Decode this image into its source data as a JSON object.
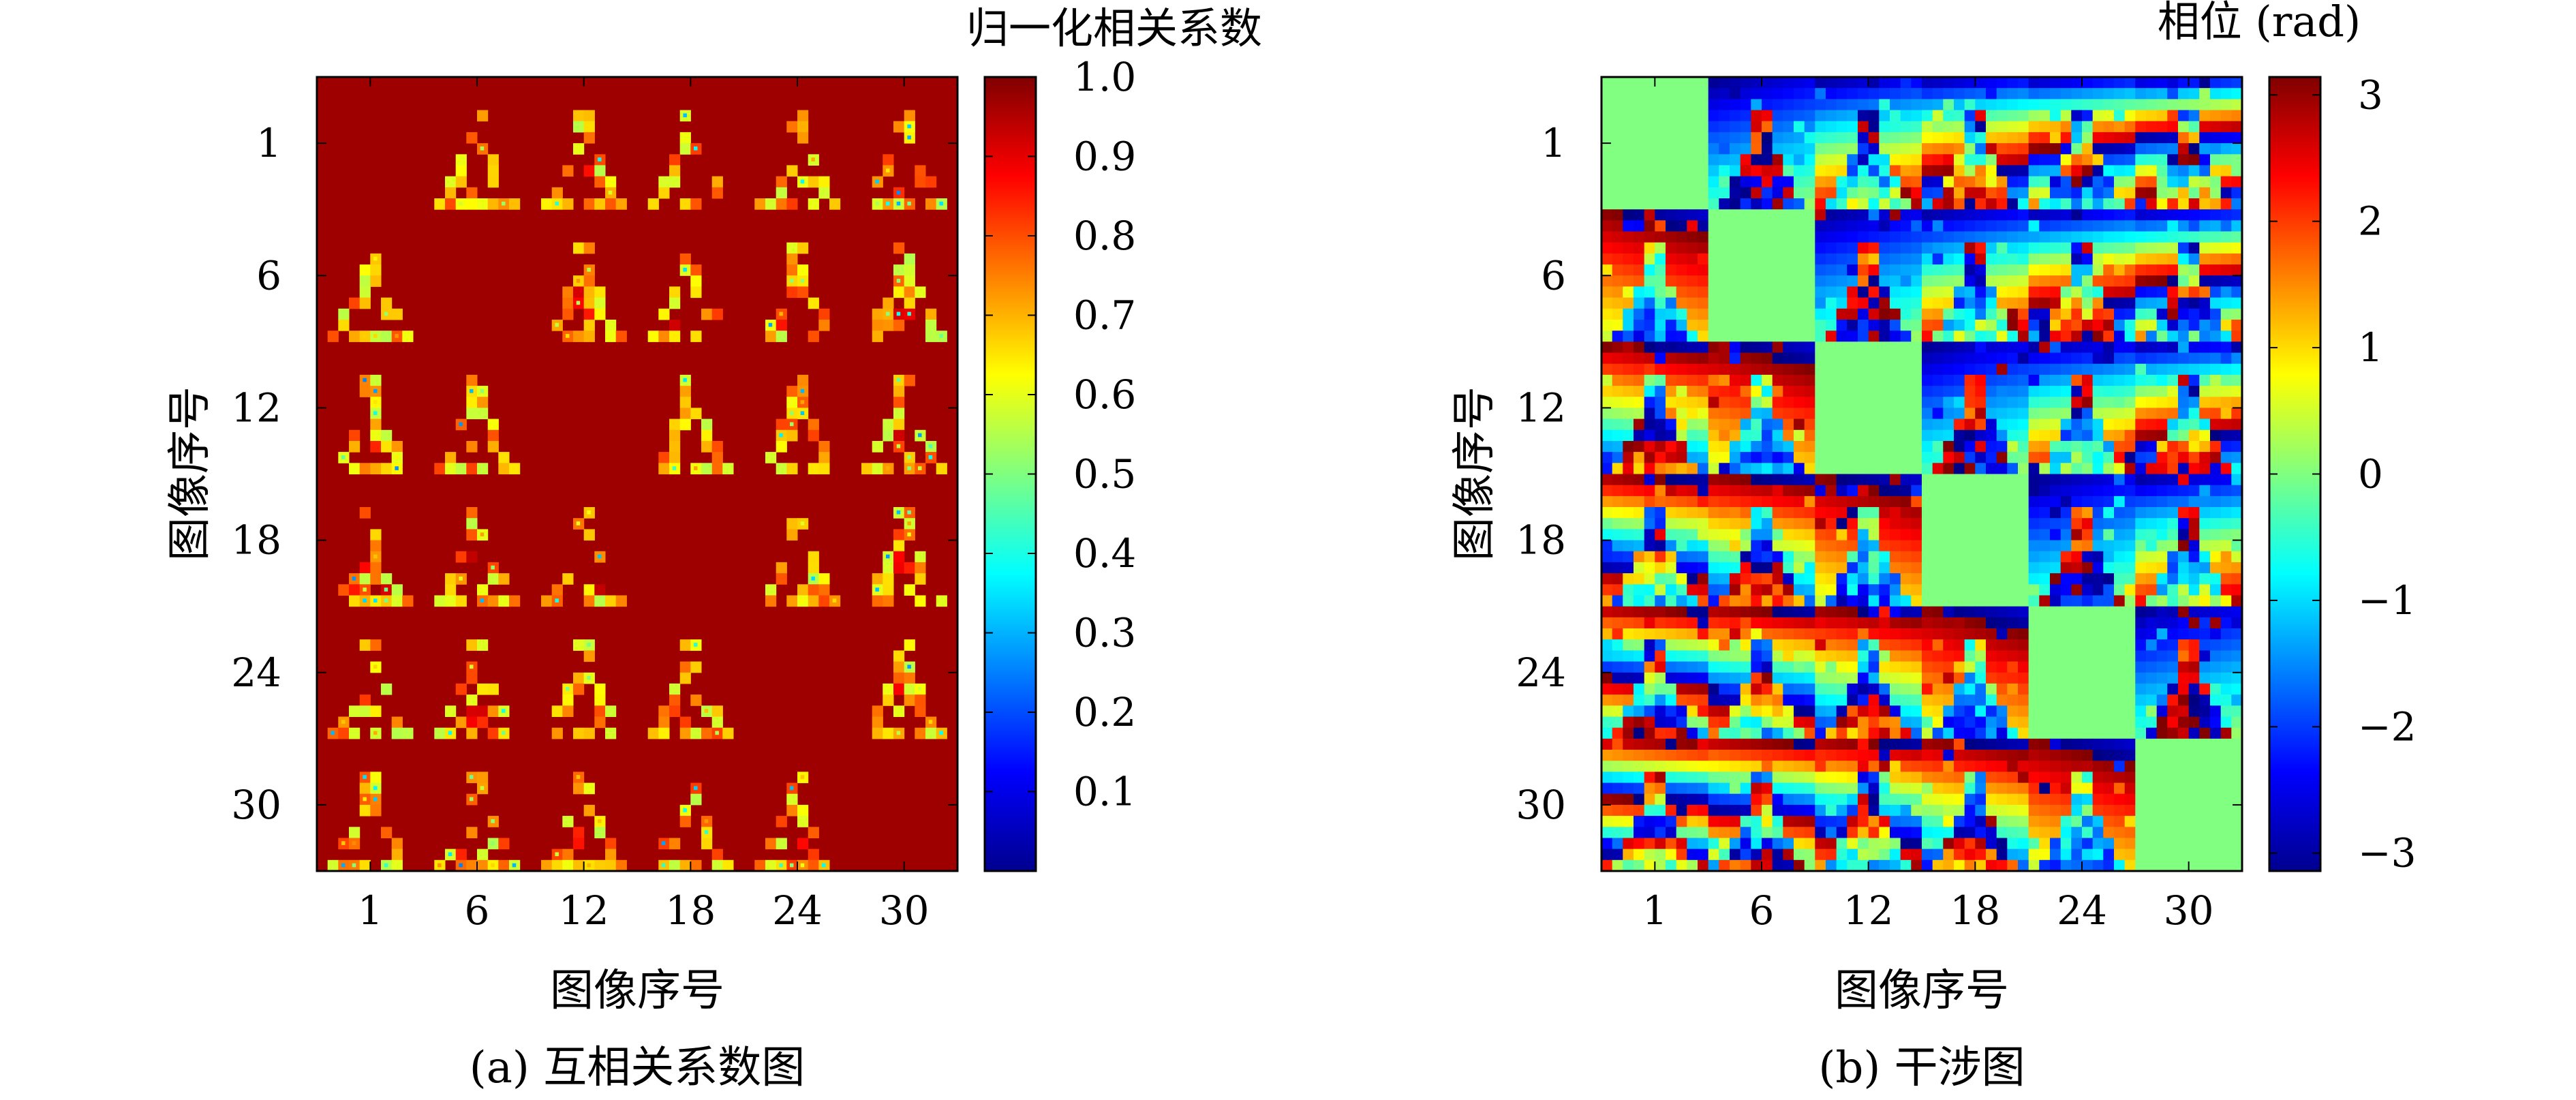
{
  "chart_data": [
    {
      "type": "heatmap",
      "caption": "(a) 互相关系数图",
      "xlabel": "图像序号",
      "ylabel": "图像序号",
      "colorbar_label": "归一化相关系数",
      "colormap": "jet",
      "x_ticks": [
        "1",
        "6",
        "12",
        "18",
        "24",
        "30"
      ],
      "y_ticks": [
        "1",
        "6",
        "12",
        "18",
        "24",
        "30"
      ],
      "colorbar_ticks": [
        "0.1",
        "0.2",
        "0.3",
        "0.4",
        "0.5",
        "0.6",
        "0.7",
        "0.8",
        "0.9",
        "1.0"
      ],
      "colorbar_range": [
        0.0,
        1.0
      ],
      "block_grid": 6,
      "description_values": {
        "diagonal_blocks": "uniform 1.0",
        "off_diagonal_blocks": "mostly 1.0 with lower-correlation speckles in a tower-shaped pattern"
      }
    },
    {
      "type": "heatmap",
      "caption": "(b) 干涉图",
      "xlabel": "图像序号",
      "ylabel": "图像序号",
      "colorbar_label": "相位 (rad)",
      "colormap": "jet",
      "x_ticks": [
        "1",
        "6",
        "12",
        "18",
        "24",
        "30"
      ],
      "y_ticks": [
        "1",
        "6",
        "12",
        "18",
        "24",
        "30"
      ],
      "colorbar_ticks": [
        "3",
        "2",
        "1",
        "0",
        "−1",
        "−2",
        "−3"
      ],
      "colorbar_range": [
        -3.14159,
        3.14159
      ],
      "block_grid": 6,
      "description_values": {
        "diagonal_blocks": "uniform 0 rad",
        "off_diagonal_blocks": "horizontal phase fringes, fringe count grows with block distance from the diagonal"
      }
    }
  ]
}
